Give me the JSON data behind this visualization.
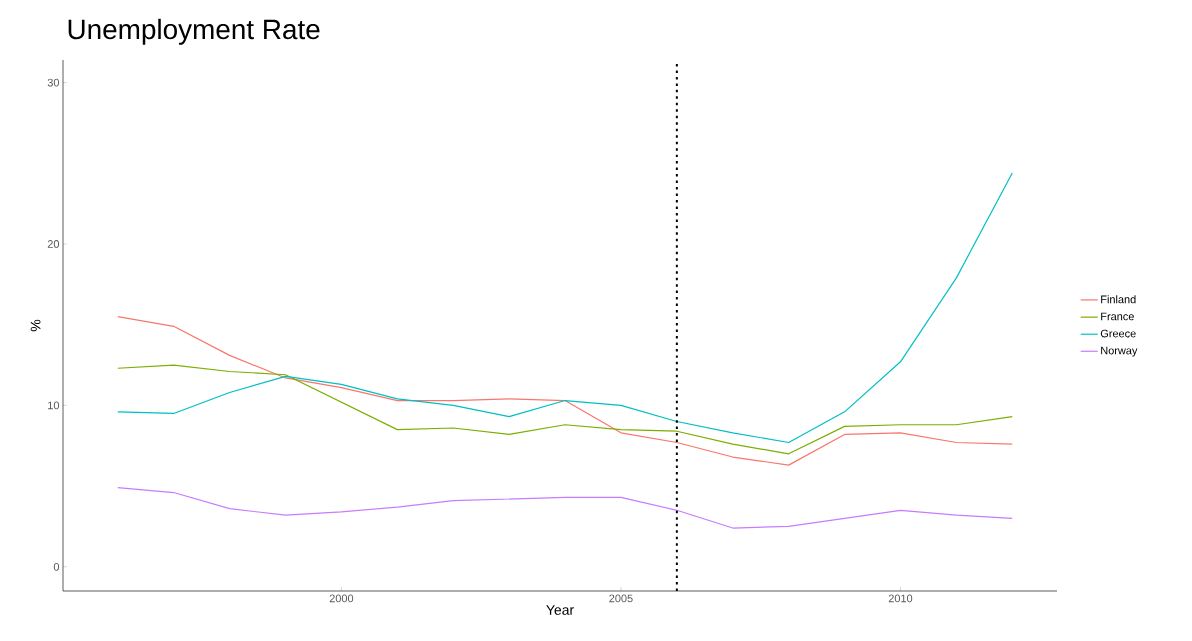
{
  "chart_data": {
    "type": "line",
    "title": "Unemployment Rate",
    "xlabel": "Year",
    "ylabel": "%",
    "x": [
      1996,
      1997,
      1998,
      1999,
      2000,
      2001,
      2002,
      2003,
      2004,
      2005,
      2006,
      2007,
      2008,
      2009,
      2010,
      2011,
      2012
    ],
    "series": [
      {
        "name": "Finland",
        "color": "#f8766d",
        "values": [
          15.5,
          14.9,
          13.1,
          11.7,
          11.1,
          10.3,
          10.3,
          10.4,
          10.3,
          8.3,
          7.7,
          6.8,
          6.3,
          8.2,
          8.3,
          7.7,
          7.6
        ]
      },
      {
        "name": "France",
        "color": "#7cae00",
        "values": [
          12.3,
          12.5,
          12.1,
          11.9,
          10.2,
          8.5,
          8.6,
          8.2,
          8.8,
          8.5,
          8.4,
          7.6,
          7.0,
          8.7,
          8.8,
          8.8,
          9.3
        ]
      },
      {
        "name": "Greece",
        "color": "#00bfc4",
        "values": [
          9.6,
          9.5,
          10.8,
          11.8,
          11.3,
          10.4,
          10.0,
          9.3,
          10.3,
          10.0,
          9.0,
          8.3,
          7.7,
          9.6,
          12.7,
          17.9,
          24.4
        ]
      },
      {
        "name": "Norway",
        "color": "#c77cff",
        "values": [
          4.9,
          4.6,
          3.6,
          3.2,
          3.4,
          3.7,
          4.1,
          4.2,
          4.3,
          4.3,
          3.5,
          2.4,
          2.5,
          3.0,
          3.5,
          3.2,
          3.0
        ]
      }
    ],
    "xlim": [
      1995.02,
      2012.8
    ],
    "ylim": [
      -1.5,
      31.4
    ],
    "xticks": [
      2000,
      2005,
      2010
    ],
    "yticks": [
      0,
      10,
      20,
      30
    ],
    "ref_lines": [
      {
        "axis": "x",
        "value": 2006,
        "color": "#000000",
        "line_style": "dotted"
      }
    ],
    "grid": false,
    "legend": "right",
    "marker": "none",
    "line_style": "solid"
  }
}
